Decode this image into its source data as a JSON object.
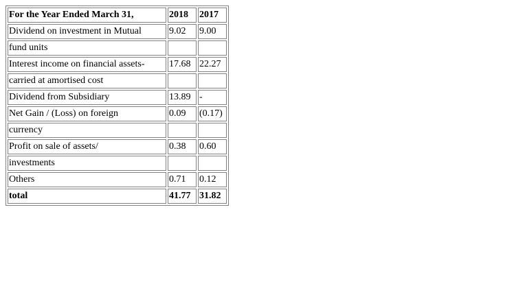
{
  "table": {
    "header": {
      "label": "For the Year Ended March 31,",
      "col_2018": "2018",
      "col_2017": "2017"
    },
    "rows": [
      {
        "label": "Dividend on investment in Mutual",
        "v2018": "9.02",
        "v2017": "9.00"
      },
      {
        "label": "fund units",
        "v2018": "",
        "v2017": ""
      },
      {
        "label": "Interest income on financial assets-",
        "v2018": "17.68",
        "v2017": "22.27"
      },
      {
        "label": "carried at amortised cost",
        "v2018": "",
        "v2017": ""
      },
      {
        "label": "Dividend from Subsidiary",
        "v2018": "13.89",
        "v2017": "-"
      },
      {
        "label": "Net Gain / (Loss) on foreign",
        "v2018": "0.09",
        "v2017": "(0.17)"
      },
      {
        "label": "currency",
        "v2018": "",
        "v2017": ""
      },
      {
        "label": "Profit on sale of assets/",
        "v2018": "0.38",
        "v2017": "0.60"
      },
      {
        "label": "investments",
        "v2018": "",
        "v2017": ""
      },
      {
        "label": "Others",
        "v2018": "0.71",
        "v2017": "0.12"
      }
    ],
    "total": {
      "label": "total",
      "v2018": "41.77",
      "v2017": "31.82"
    }
  }
}
